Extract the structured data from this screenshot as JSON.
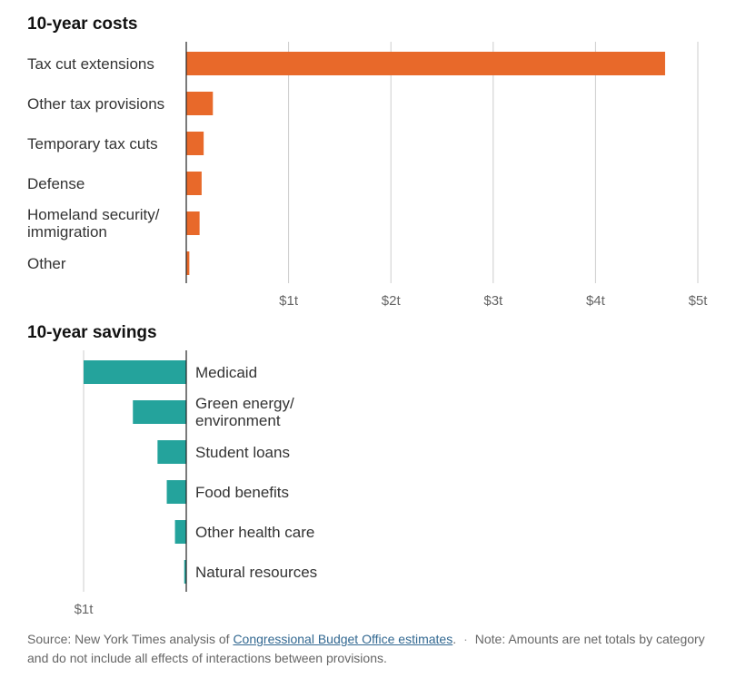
{
  "colors": {
    "cost": "#E8692A",
    "savings": "#24A39C",
    "grid": "#cccccc",
    "axis": "#222222"
  },
  "chart_data": [
    {
      "type": "bar",
      "orientation": "horizontal",
      "title": "10-year costs",
      "categories": [
        "Tax cut extensions",
        "Other tax provisions",
        "Temporary tax cuts",
        "Defense",
        "Homeland security/ immigration",
        "Other"
      ],
      "category_lines": [
        [
          "Tax cut extensions"
        ],
        [
          "Other tax provisions"
        ],
        [
          "Temporary tax cuts"
        ],
        [
          "Defense"
        ],
        [
          "Homeland security/",
          "immigration"
        ],
        [
          "Other"
        ]
      ],
      "values": [
        4.68,
        0.26,
        0.17,
        0.15,
        0.13,
        0.03
      ],
      "unit": "trillion dollars",
      "xlim": [
        0,
        5
      ],
      "ticks": [
        1,
        2,
        3,
        4,
        5
      ],
      "tick_labels": [
        "$1t",
        "$2t",
        "$3t",
        "$4t",
        "$5t"
      ],
      "grid": true
    },
    {
      "type": "bar",
      "orientation": "horizontal",
      "direction": "leftward",
      "title": "10-year savings",
      "categories": [
        "Medicaid",
        "Green energy/ environment",
        "Student loans",
        "Food benefits",
        "Other health care",
        "Natural resources"
      ],
      "category_lines": [
        [
          "Medicaid"
        ],
        [
          "Green energy/",
          "environment"
        ],
        [
          "Student loans"
        ],
        [
          "Food benefits"
        ],
        [
          "Other health care"
        ],
        [
          "Natural resources"
        ]
      ],
      "values": [
        1.0,
        0.52,
        0.28,
        0.19,
        0.11,
        0.02
      ],
      "unit": "trillion dollars",
      "xlim": [
        0,
        1
      ],
      "ticks": [
        1
      ],
      "tick_labels": [
        "$1t"
      ],
      "grid": true
    }
  ],
  "footer": {
    "source_prefix": "Source: New York Times analysis of ",
    "source_link": "Congressional Budget Office estimates",
    "source_suffix": ".",
    "separator": "·",
    "note": "Note: Amounts are net totals by category and do not include all effects of interactions between provisions."
  }
}
